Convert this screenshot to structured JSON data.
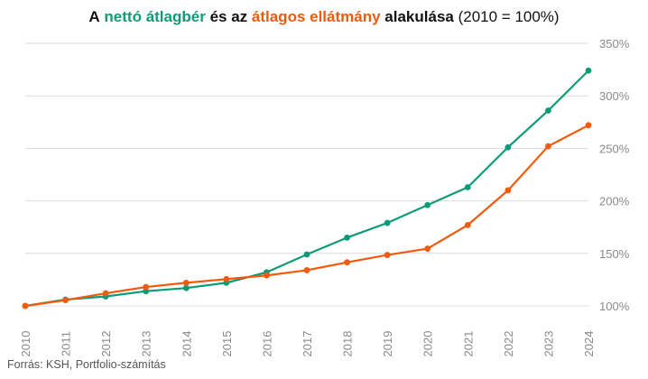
{
  "title": {
    "part1": "A",
    "part2": "nettó átlagbér",
    "part3": "és az",
    "part4": "átlagos ellátmány",
    "part5": "alakulása",
    "part6": "(2010 = 100%)"
  },
  "source": "Forrás: KSH, Portfolio-számítás",
  "colors": {
    "series1": "#0e9a78",
    "series2": "#f15a0d",
    "grid": "#dcdcdc",
    "tick": "#8a8a8a"
  },
  "chart_data": {
    "type": "line",
    "title": "A nettó átlagbér és az átlagos ellátmány alakulása (2010 = 100%)",
    "x": [
      "2010",
      "2011",
      "2012",
      "2013",
      "2014",
      "2015",
      "2016",
      "2017",
      "2018",
      "2019",
      "2020",
      "2021",
      "2022",
      "2023",
      "2024"
    ],
    "yticks": [
      "100%",
      "150%",
      "200%",
      "250%",
      "300%",
      "350%"
    ],
    "ylim": [
      100,
      350
    ],
    "grid": true,
    "legend": "in title",
    "series": [
      {
        "name": "nettó átlagbér",
        "color": "#0e9a78",
        "values": [
          100,
          106,
          109,
          114,
          117,
          122,
          132,
          149,
          165,
          179,
          196,
          213,
          251,
          286,
          324
        ]
      },
      {
        "name": "átlagos ellátmány",
        "color": "#f15a0d",
        "values": [
          100,
          105.5,
          112,
          118,
          122,
          125.5,
          129,
          134,
          141.5,
          148.5,
          154.5,
          177,
          210,
          252,
          272
        ]
      }
    ]
  }
}
